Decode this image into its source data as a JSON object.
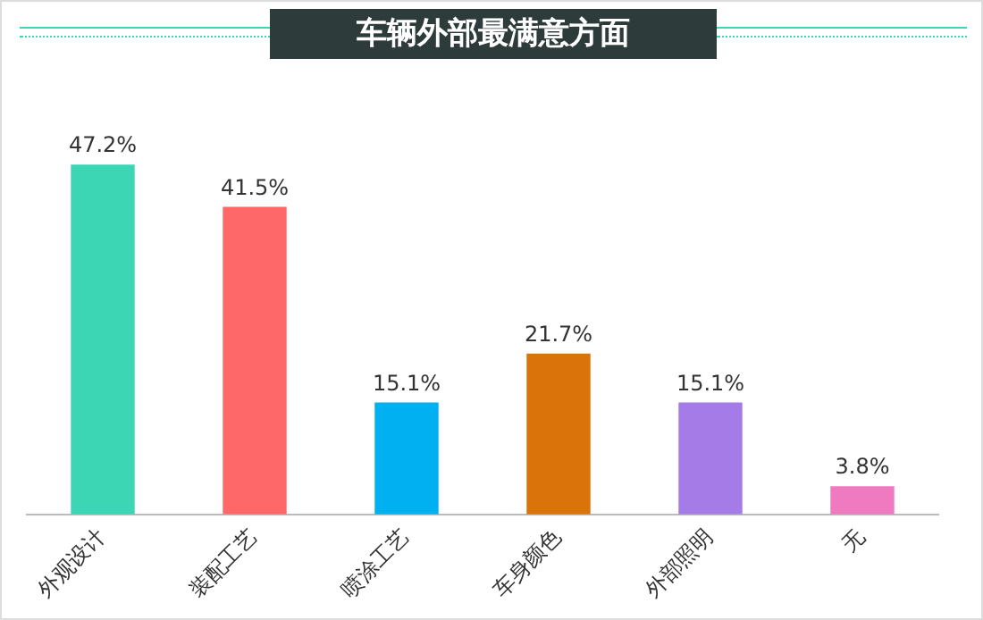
{
  "chart_data": {
    "type": "bar",
    "title": "车辆外部最满意方面",
    "categories": [
      "外观设计",
      "装配工艺",
      "喷涂工艺",
      "车身颜色",
      "外部照明",
      "无"
    ],
    "values": [
      47.2,
      41.5,
      15.1,
      21.7,
      15.1,
      3.8
    ],
    "colors": [
      "#3dd6b5",
      "#ff6868",
      "#00b0f0",
      "#d9730a",
      "#a57be8",
      "#f07ac0"
    ],
    "value_labels": [
      "47.2%",
      "41.5%",
      "15.1%",
      "21.7%",
      "15.1%",
      "3.8%"
    ],
    "tick_labels": "x",
    "grid": false,
    "legend": false
  }
}
